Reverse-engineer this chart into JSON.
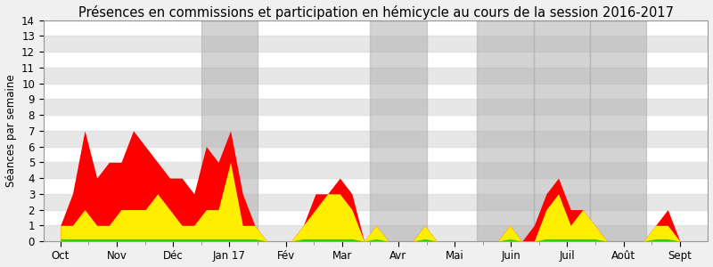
{
  "title": "Présences en commissions et participation en hémicycle au cours de la session 2016-2017",
  "ylabel": "Séances par semaine",
  "ylim": [
    0,
    14
  ],
  "yticks": [
    0,
    1,
    2,
    3,
    4,
    5,
    6,
    7,
    8,
    9,
    10,
    11,
    12,
    13,
    14
  ],
  "bg_color": "#f0f0f0",
  "plot_bg_color": "#ffffff",
  "stripe_color": "#d8d8d8",
  "gray_band_color": "#b0b0b0",
  "gray_band_alpha": 0.55,
  "x_labels": [
    "Oct",
    "Nov",
    "Déc",
    "Jan 17",
    "Fév",
    "Mar",
    "Avr",
    "Mai",
    "Juin",
    "Juil",
    "Août",
    "Sept"
  ],
  "gray_band_ranges": [
    [
      2.5,
      3.5
    ],
    [
      5.5,
      6.5
    ],
    [
      7.4,
      8.4
    ],
    [
      8.4,
      9.4
    ],
    [
      9.4,
      10.4
    ]
  ],
  "red_color": "#ff0000",
  "yellow_color": "#ffee00",
  "green_color": "#33cc00",
  "title_fontsize": 10.5,
  "axis_fontsize": 8.5,
  "n_weeks": 52,
  "red_data": [
    1,
    3,
    7,
    4,
    5,
    5,
    7,
    6,
    5,
    4,
    4,
    3,
    6,
    5,
    7,
    3,
    1,
    0,
    0,
    0,
    1,
    3,
    3,
    4,
    3,
    0,
    1,
    0,
    0,
    0,
    1,
    0,
    0,
    0,
    0,
    0,
    0,
    1,
    0,
    1,
    3,
    4,
    2,
    2,
    1,
    0,
    0,
    0,
    0,
    1,
    2,
    0
  ],
  "yellow_data": [
    1,
    1,
    2,
    1,
    1,
    2,
    2,
    2,
    3,
    2,
    1,
    1,
    2,
    2,
    5,
    1,
    1,
    0,
    0,
    0,
    1,
    2,
    3,
    3,
    2,
    0,
    1,
    0,
    0,
    0,
    1,
    0,
    0,
    0,
    0,
    0,
    0,
    1,
    0,
    0,
    2,
    3,
    1,
    2,
    1,
    0,
    0,
    0,
    0,
    1,
    1,
    0
  ],
  "green_data": [
    0.15,
    0.15,
    0.15,
    0.15,
    0.15,
    0.15,
    0.15,
    0.15,
    0.15,
    0.15,
    0.15,
    0.15,
    0.15,
    0.15,
    0.15,
    0.15,
    0.15,
    0,
    0,
    0,
    0.15,
    0.15,
    0.15,
    0.15,
    0.15,
    0,
    0.15,
    0,
    0,
    0,
    0.15,
    0,
    0,
    0,
    0,
    0,
    0,
    0.15,
    0,
    0,
    0.15,
    0.15,
    0.15,
    0.15,
    0.15,
    0,
    0,
    0,
    0,
    0.15,
    0.15,
    0
  ]
}
